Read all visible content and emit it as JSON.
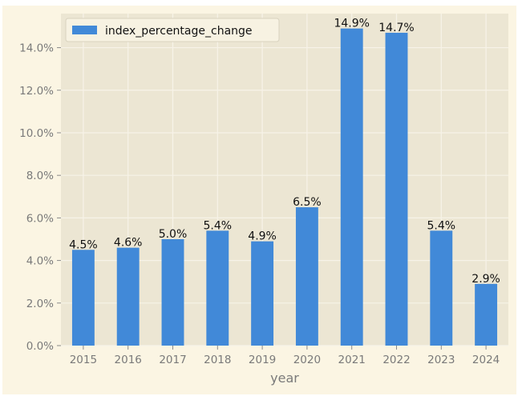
{
  "chart_data": {
    "type": "bar",
    "categories": [
      "2015",
      "2016",
      "2017",
      "2018",
      "2019",
      "2020",
      "2021",
      "2022",
      "2023",
      "2024"
    ],
    "series": [
      {
        "name": "index_percentage_change",
        "values": [
          4.5,
          4.6,
          5.0,
          5.4,
          4.9,
          6.5,
          14.9,
          14.7,
          5.4,
          2.9
        ]
      }
    ],
    "value_labels": [
      "4.5%",
      "4.6%",
      "5.0%",
      "5.4%",
      "4.9%",
      "6.5%",
      "14.9%",
      "14.7%",
      "5.4%",
      "2.9%"
    ],
    "yticks": [
      0,
      2,
      4,
      6,
      8,
      10,
      12,
      14
    ],
    "ytick_labels": [
      "0.0%",
      "2.0%",
      "4.0%",
      "6.0%",
      "8.0%",
      "10.0%",
      "12.0%",
      "14.0%"
    ],
    "ylim": [
      0,
      15.6
    ],
    "xlabel": "year",
    "ylabel": "",
    "title": "",
    "legend": {
      "label": "index_percentage_change",
      "position": "top-left"
    },
    "grid": true,
    "colors": {
      "bar": "#4189d8",
      "plot_bg": "#ece6d3",
      "figure_bg": "#fbf5e3",
      "grid": "#f7f3e8",
      "tick_text": "#7a7a7a",
      "label_text": "#111111"
    }
  }
}
